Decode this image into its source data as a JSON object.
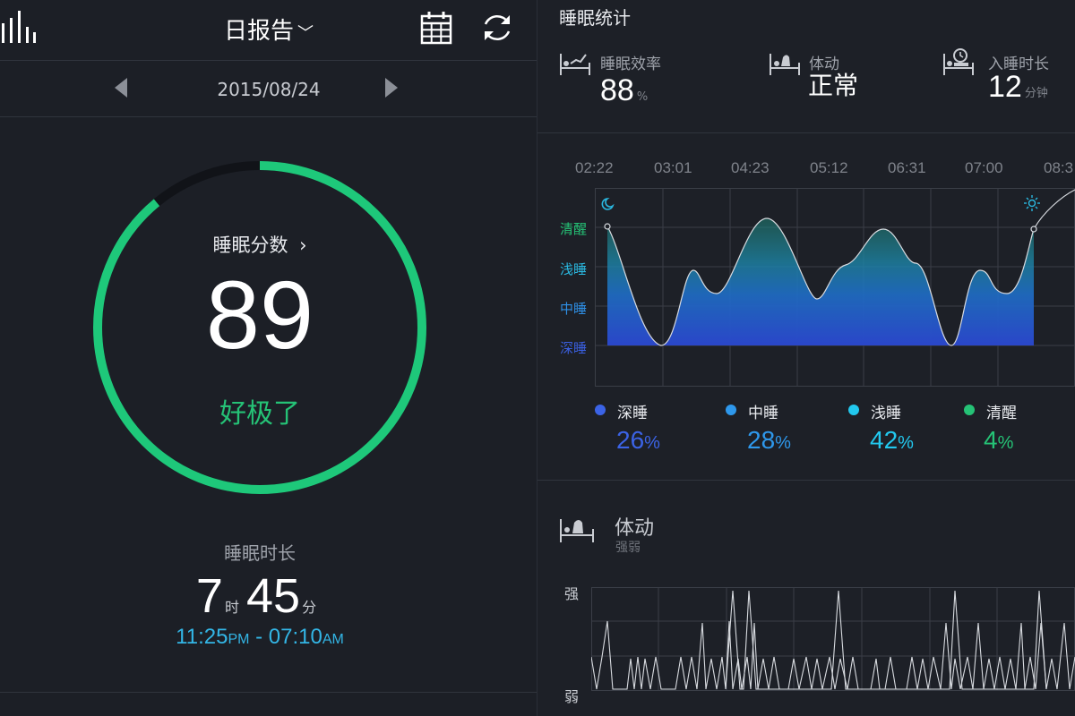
{
  "header": {
    "title": "日报告",
    "date": "2015/08/24"
  },
  "score": {
    "label": "睡眠分数",
    "value": "89",
    "rating": "好极了",
    "progress_fraction": 0.89
  },
  "duration": {
    "label": "睡眠时长",
    "hours": "7",
    "hours_unit": "时",
    "minutes": "45",
    "minutes_unit": "分",
    "start": "11:25",
    "start_ampm": "PM",
    "separator": " - ",
    "end": "07:10",
    "end_ampm": "AM"
  },
  "stats": {
    "title": "睡眠统计",
    "efficiency": {
      "label": "睡眠效率",
      "value": "88",
      "unit": "%"
    },
    "movement": {
      "label": "体动",
      "value": "正常"
    },
    "fall_asleep": {
      "label": "入睡时长",
      "value": "12",
      "unit": "分钟"
    }
  },
  "stage_chart": {
    "times": [
      "02:22",
      "03:01",
      "04:23",
      "05:12",
      "06:31",
      "07:00",
      "08:3"
    ],
    "stages": [
      "清醒",
      "浅睡",
      "中睡",
      "深睡"
    ],
    "stage_colors": [
      "#25c276",
      "#2ab8e0",
      "#2e8fe6",
      "#3a5fe0"
    ]
  },
  "legend": [
    {
      "name": "深睡",
      "value": "26",
      "unit": "%",
      "color": "#3b63e6"
    },
    {
      "name": "中睡",
      "value": "28",
      "unit": "%",
      "color": "#2e98ec"
    },
    {
      "name": "浅睡",
      "value": "42",
      "unit": "%",
      "color": "#22c8ee"
    },
    {
      "name": "清醒",
      "value": "4",
      "unit": "%",
      "color": "#25c276"
    }
  ],
  "movement_chart": {
    "title": "体动",
    "subtitle": "强弱",
    "strong_label": "强",
    "weak_label": "弱"
  }
}
